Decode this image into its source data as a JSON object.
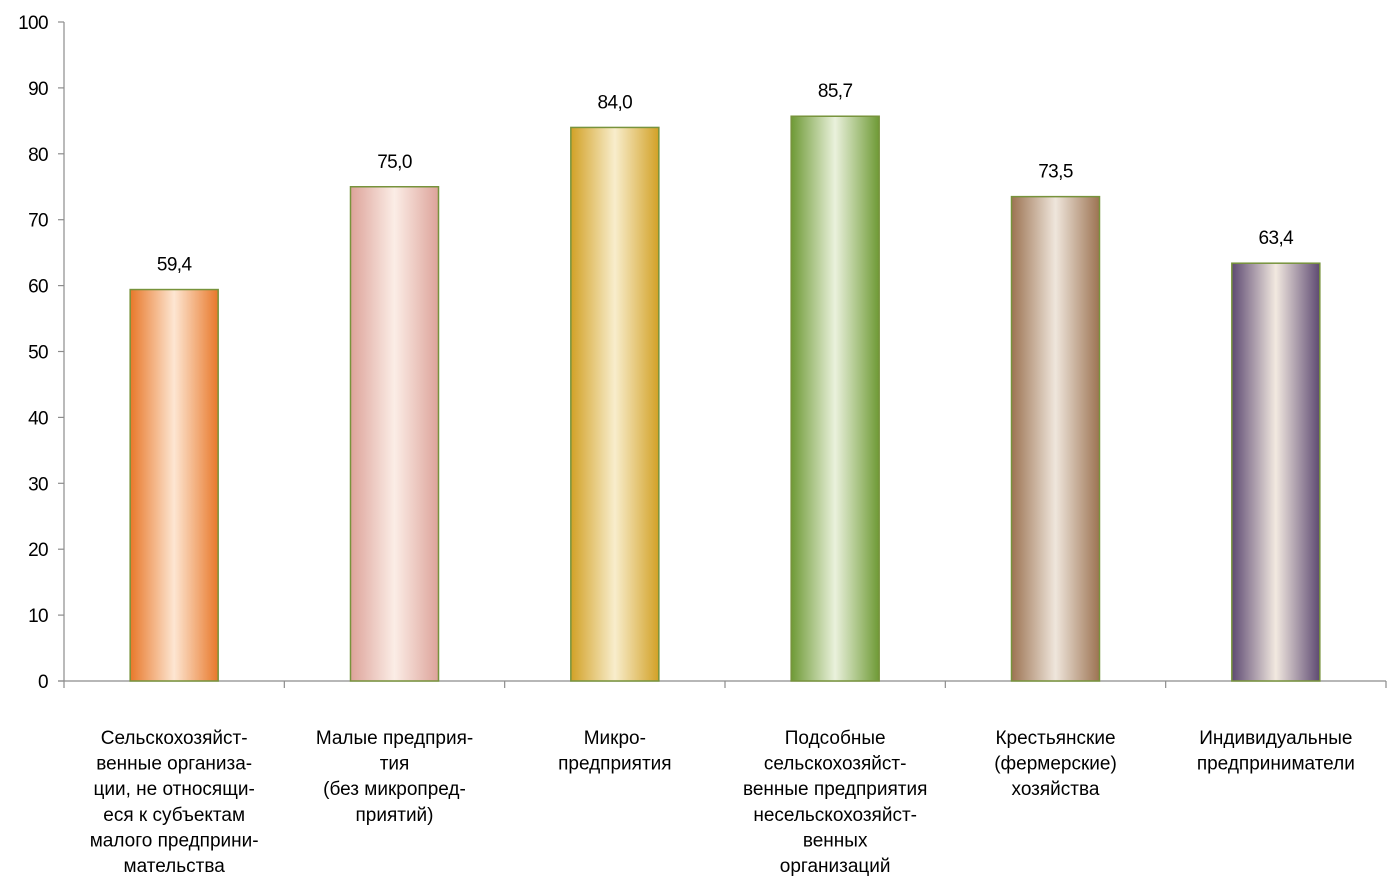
{
  "chart_data": {
    "type": "bar",
    "categories": [
      [
        "Сельскохозяйст-",
        "венные организа-",
        "ции, не относящи-",
        "еся к субъектам",
        "малого предприни-",
        "мательства"
      ],
      [
        "Малые предприя-",
        "тия",
        "(без микропред-",
        "приятий)"
      ],
      [
        "Микро-",
        "предприятия"
      ],
      [
        "Подсобные",
        "сельскохозяйст-",
        "венные предприятия",
        "несельскохозяйст-",
        "венных",
        "организаций"
      ],
      [
        "Крестьянские",
        "(фермерские)",
        "хозяйства"
      ],
      [
        "Индивидуальные",
        "предприниматели"
      ]
    ],
    "values": [
      59.4,
      75.0,
      84.0,
      85.7,
      73.5,
      63.4
    ],
    "data_labels": [
      "59,4",
      "75,0",
      "84,0",
      "85,7",
      "73,5",
      "63,4"
    ],
    "ylim": [
      0,
      100
    ],
    "yticks": [
      "0",
      "10",
      "20",
      "30",
      "40",
      "50",
      "60",
      "70",
      "80",
      "90",
      "100"
    ],
    "grid": false,
    "legend": "none",
    "bar_colors": [
      {
        "dark": "#E8782A",
        "light": "#FDE6D2"
      },
      {
        "dark": "#DDA39A",
        "light": "#FBEDE6"
      },
      {
        "dark": "#D2A126",
        "light": "#F8EDCC"
      },
      {
        "dark": "#6E9A35",
        "light": "#EAF1DC"
      },
      {
        "dark": "#9C7352",
        "light": "#EFE6DC"
      },
      {
        "dark": "#5E4A72",
        "light": "#F2E9E0"
      }
    ],
    "bar_border_color": "#77933C"
  }
}
